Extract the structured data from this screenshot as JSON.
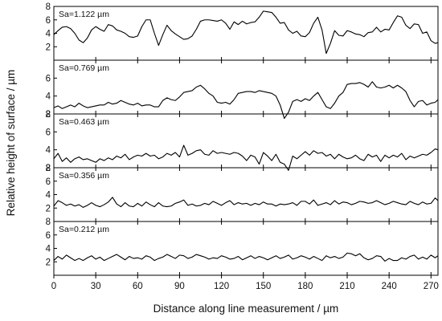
{
  "chart_data": {
    "type": "line",
    "xlabel": "Distance along line measurement / µm",
    "ylabel": "Relative height of surface / µm",
    "xlim": [
      0,
      275
    ],
    "xticks": [
      0,
      30,
      60,
      90,
      120,
      150,
      180,
      210,
      240,
      270
    ],
    "grid": false,
    "legend": "none",
    "panels": [
      {
        "annotation": "Sa=1.122 µm",
        "ylim": [
          0,
          8
        ],
        "yticks": [
          2,
          4,
          6,
          8
        ],
        "x": [
          0,
          3,
          6,
          9,
          12,
          15,
          18,
          21,
          24,
          27,
          30,
          33,
          36,
          39,
          42,
          45,
          48,
          51,
          54,
          57,
          60,
          63,
          66,
          69,
          72,
          75,
          78,
          81,
          84,
          87,
          90,
          93,
          96,
          99,
          102,
          105,
          108,
          111,
          114,
          117,
          120,
          123,
          126,
          129,
          132,
          135,
          138,
          141,
          144,
          147,
          150,
          153,
          156,
          159,
          162,
          165,
          168,
          171,
          174,
          177,
          180,
          183,
          186,
          189,
          192,
          195,
          198,
          201,
          204,
          207,
          210,
          213,
          216,
          219,
          222,
          225,
          228,
          231,
          234,
          237,
          240,
          243,
          246,
          249,
          252,
          255,
          258,
          261,
          264,
          267,
          270,
          273,
          275
        ],
        "y": [
          3.8,
          4.4,
          4.9,
          5.0,
          4.7,
          4.0,
          3.0,
          2.6,
          3.3,
          4.5,
          5.0,
          4.6,
          4.3,
          5.3,
          5.1,
          4.5,
          4.3,
          4.0,
          3.5,
          3.4,
          3.6,
          5.0,
          6.0,
          6.0,
          4.0,
          2.2,
          3.8,
          5.2,
          4.4,
          3.9,
          3.5,
          3.1,
          3.2,
          3.6,
          4.6,
          5.8,
          6.0,
          6.0,
          5.9,
          5.8,
          6.0,
          5.5,
          4.6,
          5.7,
          5.3,
          5.8,
          5.4,
          5.6,
          5.7,
          6.4,
          7.3,
          7.2,
          7.1,
          6.4,
          5.5,
          5.6,
          4.5,
          4.0,
          4.3,
          3.6,
          3.5,
          4.1,
          5.5,
          6.4,
          4.5,
          1.0,
          2.5,
          4.4,
          3.7,
          3.6,
          4.4,
          4.2,
          3.9,
          3.8,
          3.5,
          4.1,
          4.2,
          4.9,
          4.2,
          4.6,
          4.5,
          5.6,
          6.6,
          6.4,
          5.2,
          4.7,
          5.4,
          5.3,
          4.0,
          4.2,
          2.9,
          2.5,
          2.6
        ]
      },
      {
        "annotation": "Sa=0.769 µm",
        "ylim": [
          2,
          8
        ],
        "yticks": [
          2,
          4,
          6
        ],
        "x": [
          0,
          3,
          6,
          9,
          12,
          15,
          18,
          21,
          24,
          27,
          30,
          33,
          36,
          39,
          42,
          45,
          48,
          51,
          54,
          57,
          60,
          63,
          66,
          69,
          72,
          75,
          78,
          81,
          84,
          87,
          90,
          93,
          96,
          99,
          102,
          105,
          108,
          111,
          114,
          117,
          120,
          123,
          126,
          129,
          132,
          135,
          138,
          141,
          144,
          147,
          150,
          153,
          156,
          159,
          162,
          165,
          168,
          171,
          174,
          177,
          180,
          183,
          186,
          189,
          192,
          195,
          198,
          201,
          204,
          207,
          210,
          213,
          216,
          219,
          222,
          225,
          228,
          231,
          234,
          237,
          240,
          243,
          246,
          249,
          252,
          255,
          258,
          261,
          264,
          267,
          270,
          273,
          275
        ],
        "y": [
          2.7,
          2.9,
          2.6,
          2.8,
          3.0,
          2.8,
          3.2,
          2.9,
          2.7,
          2.8,
          2.9,
          3.0,
          3.0,
          3.3,
          3.1,
          3.2,
          3.5,
          3.3,
          3.1,
          3.0,
          3.2,
          2.9,
          3.0,
          3.0,
          2.8,
          2.8,
          3.5,
          3.8,
          3.6,
          3.5,
          3.9,
          4.4,
          4.5,
          4.6,
          5.0,
          5.2,
          4.8,
          4.3,
          4.0,
          3.3,
          3.2,
          3.3,
          3.1,
          3.6,
          4.3,
          4.4,
          4.5,
          4.5,
          4.4,
          4.6,
          4.5,
          4.4,
          4.3,
          4.0,
          3.0,
          1.5,
          2.2,
          3.4,
          3.6,
          3.4,
          3.7,
          3.5,
          4.0,
          4.4,
          3.6,
          2.8,
          2.6,
          3.2,
          4.0,
          4.4,
          5.3,
          5.4,
          5.4,
          5.5,
          5.3,
          5.0,
          5.6,
          5.0,
          4.9,
          5.0,
          5.2,
          4.9,
          5.2,
          4.9,
          4.5,
          3.5,
          2.8,
          3.4,
          3.5,
          3.0,
          3.2,
          3.3,
          3.6
        ]
      },
      {
        "annotation": "Sa=0.463 µm",
        "ylim": [
          2,
          8
        ],
        "yticks": [
          2,
          4,
          6,
          8
        ],
        "x": [
          0,
          3,
          6,
          9,
          12,
          15,
          18,
          21,
          24,
          27,
          30,
          33,
          36,
          39,
          42,
          45,
          48,
          51,
          54,
          57,
          60,
          63,
          66,
          69,
          72,
          75,
          78,
          81,
          84,
          87,
          90,
          93,
          96,
          99,
          102,
          105,
          108,
          111,
          114,
          117,
          120,
          123,
          126,
          129,
          132,
          135,
          138,
          141,
          144,
          147,
          150,
          153,
          156,
          159,
          162,
          165,
          168,
          171,
          174,
          177,
          180,
          183,
          186,
          189,
          192,
          195,
          198,
          201,
          204,
          207,
          210,
          213,
          216,
          219,
          222,
          225,
          228,
          231,
          234,
          237,
          240,
          243,
          246,
          249,
          252,
          255,
          258,
          261,
          264,
          267,
          270,
          273,
          275
        ],
        "y": [
          3.0,
          3.6,
          2.7,
          3.1,
          2.6,
          3.0,
          3.2,
          2.9,
          3.0,
          2.8,
          2.6,
          3.0,
          2.8,
          3.1,
          2.9,
          3.3,
          3.1,
          3.5,
          2.9,
          3.2,
          3.4,
          3.3,
          3.6,
          3.3,
          3.4,
          3.0,
          3.2,
          3.6,
          3.4,
          3.7,
          3.2,
          4.5,
          3.4,
          3.6,
          3.9,
          4.0,
          3.5,
          3.4,
          3.9,
          3.6,
          3.7,
          3.6,
          3.5,
          3.7,
          3.6,
          3.3,
          2.8,
          3.4,
          3.2,
          2.4,
          3.7,
          3.3,
          2.8,
          3.5,
          2.6,
          2.4,
          1.7,
          3.3,
          3.0,
          3.4,
          3.8,
          3.4,
          3.9,
          3.6,
          3.7,
          3.3,
          3.5,
          3.0,
          3.5,
          3.2,
          3.0,
          3.1,
          3.4,
          3.0,
          2.8,
          3.5,
          3.2,
          3.4,
          2.7,
          3.4,
          3.1,
          3.4,
          3.2,
          3.6,
          2.9,
          3.3,
          3.1,
          3.3,
          3.5,
          3.4,
          3.7,
          4.1,
          4.0
        ]
      },
      {
        "annotation": "Sa=0.356 µm",
        "ylim": [
          0,
          8
        ],
        "yticks": [
          2,
          4,
          6,
          8
        ],
        "x": [
          0,
          3,
          6,
          9,
          12,
          15,
          18,
          21,
          24,
          27,
          30,
          33,
          36,
          39,
          42,
          45,
          48,
          51,
          54,
          57,
          60,
          63,
          66,
          69,
          72,
          75,
          78,
          81,
          84,
          87,
          90,
          93,
          96,
          99,
          102,
          105,
          108,
          111,
          114,
          117,
          120,
          123,
          126,
          129,
          132,
          135,
          138,
          141,
          144,
          147,
          150,
          153,
          156,
          159,
          162,
          165,
          168,
          171,
          174,
          177,
          180,
          183,
          186,
          189,
          192,
          195,
          198,
          201,
          204,
          207,
          210,
          213,
          216,
          219,
          222,
          225,
          228,
          231,
          234,
          237,
          240,
          243,
          246,
          249,
          252,
          255,
          258,
          261,
          264,
          267,
          270,
          273,
          275
        ],
        "y": [
          2.3,
          3.1,
          2.8,
          2.4,
          2.6,
          2.3,
          2.5,
          2.1,
          2.4,
          2.8,
          2.4,
          2.2,
          2.5,
          2.9,
          3.6,
          2.6,
          2.2,
          2.8,
          2.3,
          2.2,
          2.7,
          2.3,
          2.9,
          2.5,
          2.2,
          2.8,
          2.3,
          2.2,
          2.3,
          2.7,
          2.9,
          3.2,
          2.4,
          2.6,
          2.3,
          2.4,
          2.7,
          2.5,
          3.0,
          2.7,
          2.4,
          2.8,
          3.1,
          2.5,
          2.8,
          2.6,
          2.7,
          2.4,
          2.7,
          2.5,
          2.9,
          2.6,
          2.6,
          2.3,
          2.6,
          2.5,
          2.6,
          2.8,
          2.4,
          3.0,
          3.0,
          2.6,
          3.2,
          2.4,
          2.6,
          2.8,
          2.5,
          3.1,
          2.6,
          2.9,
          2.8,
          2.5,
          2.7,
          3.0,
          2.9,
          2.7,
          2.8,
          3.1,
          2.8,
          2.5,
          2.7,
          3.0,
          2.8,
          2.6,
          2.5,
          3.0,
          2.7,
          2.5,
          2.9,
          2.6,
          2.7,
          3.5,
          3.1
        ]
      },
      {
        "annotation": "Sa=0.212 µm",
        "ylim": [
          0,
          8
        ],
        "yticks": [
          2,
          4,
          6,
          8
        ],
        "x": [
          0,
          3,
          6,
          9,
          12,
          15,
          18,
          21,
          24,
          27,
          30,
          33,
          36,
          39,
          42,
          45,
          48,
          51,
          54,
          57,
          60,
          63,
          66,
          69,
          72,
          75,
          78,
          81,
          84,
          87,
          90,
          93,
          96,
          99,
          102,
          105,
          108,
          111,
          114,
          117,
          120,
          123,
          126,
          129,
          132,
          135,
          138,
          141,
          144,
          147,
          150,
          153,
          156,
          159,
          162,
          165,
          168,
          171,
          174,
          177,
          180,
          183,
          186,
          189,
          192,
          195,
          198,
          201,
          204,
          207,
          210,
          213,
          216,
          219,
          222,
          225,
          228,
          231,
          234,
          237,
          240,
          243,
          246,
          249,
          252,
          255,
          258,
          261,
          264,
          267,
          270,
          273,
          275
        ],
        "y": [
          2.2,
          2.8,
          2.4,
          3.0,
          2.6,
          2.2,
          2.5,
          2.2,
          2.6,
          2.9,
          2.4,
          2.7,
          2.2,
          2.5,
          2.8,
          3.1,
          2.7,
          2.3,
          2.8,
          2.5,
          2.6,
          2.4,
          2.9,
          2.7,
          2.2,
          2.5,
          2.7,
          3.1,
          2.8,
          2.5,
          3.0,
          2.9,
          2.5,
          2.7,
          3.1,
          2.9,
          2.7,
          2.4,
          2.6,
          2.5,
          2.9,
          2.7,
          2.4,
          2.5,
          2.8,
          2.3,
          2.6,
          2.9,
          2.5,
          2.8,
          2.6,
          2.3,
          2.6,
          2.9,
          2.5,
          2.7,
          3.0,
          2.4,
          2.6,
          2.9,
          2.7,
          2.4,
          2.8,
          2.5,
          2.2,
          2.9,
          2.6,
          2.8,
          2.5,
          2.7,
          3.3,
          3.2,
          2.9,
          3.2,
          2.6,
          2.3,
          2.5,
          2.9,
          2.8,
          2.1,
          2.5,
          2.2,
          2.2,
          2.6,
          2.4,
          2.8,
          3.0,
          2.4,
          2.7,
          2.4,
          3.0,
          2.6,
          2.9
        ]
      }
    ]
  }
}
